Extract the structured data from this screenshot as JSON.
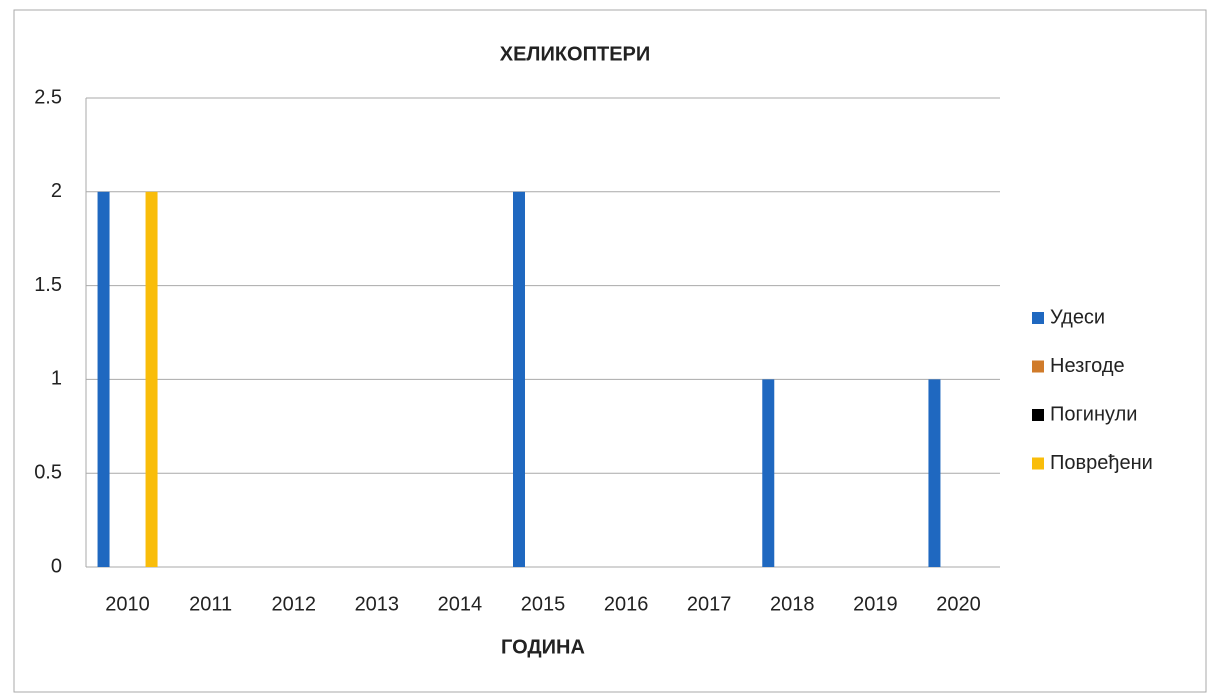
{
  "chart_data": {
    "type": "bar",
    "title": "ХЕЛИКОПТЕРИ",
    "x_label": "ГОДИНА",
    "categories": [
      "2010",
      "2011",
      "2012",
      "2013",
      "2014",
      "2015",
      "2016",
      "2017",
      "2018",
      "2019",
      "2020"
    ],
    "series": [
      {
        "name": "Удеси",
        "color": "#1f68c0",
        "values": [
          2,
          0,
          0,
          0,
          0,
          2,
          0,
          0,
          1,
          0,
          1
        ]
      },
      {
        "name": "Незгоде",
        "color": "#d07b2a",
        "values": [
          0,
          0,
          0,
          0,
          0,
          0,
          0,
          0,
          0,
          0,
          0
        ]
      },
      {
        "name": "Погинули",
        "color": "#000000",
        "values": [
          0,
          0,
          0,
          0,
          0,
          0,
          0,
          0,
          0,
          0,
          0
        ]
      },
      {
        "name": "Повређени",
        "color": "#f9bd0a",
        "values": [
          2,
          0,
          0,
          0,
          0,
          0,
          0,
          0,
          0,
          0,
          0
        ]
      }
    ],
    "ylim": [
      0,
      2.5
    ],
    "yticks": [
      0,
      0.5,
      1,
      1.5,
      2,
      2.5
    ],
    "grid": true,
    "legend": "right"
  }
}
